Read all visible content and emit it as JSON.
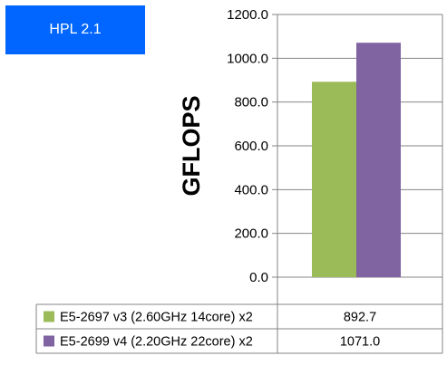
{
  "badge": {
    "label": "HPL 2.1",
    "color": "#0066ff"
  },
  "chart_data": {
    "type": "bar",
    "ylabel": "GFLOPS",
    "ylim": [
      0,
      1200
    ],
    "yticks": [
      "0.0",
      "200.0",
      "400.0",
      "600.0",
      "800.0",
      "1000.0",
      "1200.0"
    ],
    "tick_values": [
      0,
      200,
      400,
      600,
      800,
      1000,
      1200
    ],
    "grid": true,
    "legend": "data-table-below",
    "series": [
      {
        "name": "E5-2697 v3 (2.60GHz 14core) x2",
        "value": 892.7,
        "value_label": "892.7",
        "color": "#9bbb59"
      },
      {
        "name": "E5-2699 v4 (2.20GHz 22core) x2",
        "value": 1071.0,
        "value_label": "1071.0",
        "color": "#8064a2"
      }
    ]
  }
}
